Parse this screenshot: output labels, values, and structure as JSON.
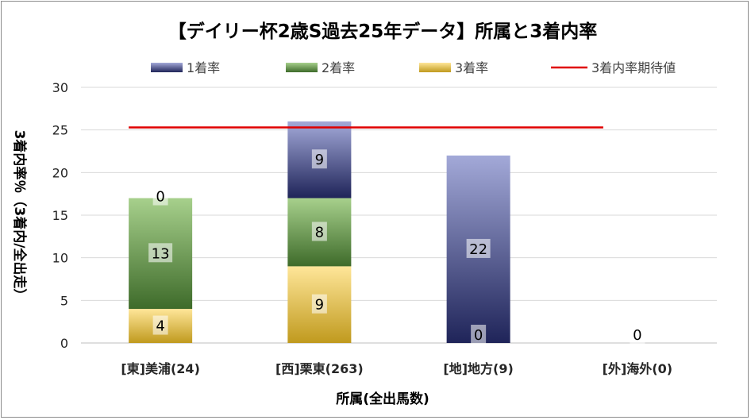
{
  "chart_data": {
    "type": "bar",
    "stacked": true,
    "title": "【デイリー杯2歳S過去25年データ】所属と3着内率",
    "xlabel": "所属(全出馬数)",
    "ylabel": "3着内率％（3着内/全出走）",
    "ylim": [
      0,
      30
    ],
    "yticks": [
      0,
      5,
      10,
      15,
      20,
      25,
      30
    ],
    "grid": true,
    "legend_position": "top",
    "categories": [
      "[東]美浦(24)",
      "[西]栗東(263)",
      "[地]地方(9)",
      "[外]海外(0)"
    ],
    "series": [
      {
        "name": "1着率",
        "values": [
          0,
          9,
          22,
          0
        ],
        "labels": [
          "",
          "9",
          "22",
          "0"
        ],
        "color_top": "#a3a9d8",
        "color_bottom": "#1f2459"
      },
      {
        "name": "2着率",
        "values": [
          13,
          8,
          0,
          0
        ],
        "labels": [
          "13",
          "8",
          "0",
          ""
        ],
        "color_top": "#a7d08c",
        "color_bottom": "#3e6b2a"
      },
      {
        "name": "3着率",
        "values": [
          4,
          9,
          0,
          0
        ],
        "labels": [
          "4",
          "9",
          "",
          ""
        ],
        "color_top": "#ffe699",
        "color_bottom": "#c09a1e"
      }
    ],
    "top_labels": [
      "0",
      "",
      "",
      ""
    ],
    "reference_line": {
      "name": "3着内率期待値",
      "value": 25.3,
      "color": "#e00000"
    }
  }
}
